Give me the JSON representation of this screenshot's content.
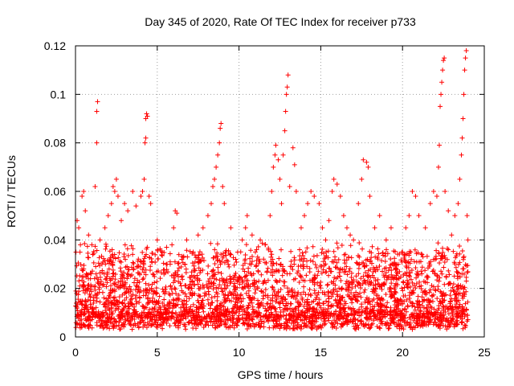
{
  "chart_data": {
    "type": "scatter",
    "title": "Day 345 of 2020, Rate Of TEC Index for receiver p733",
    "xlabel": "GPS time / hours",
    "ylabel": "ROTI / TECUs",
    "xlim": [
      0,
      25
    ],
    "ylim": [
      0,
      0.12
    ],
    "x_ticks": [
      0,
      5,
      10,
      15,
      20,
      25
    ],
    "x_tick_labels": [
      "0",
      "5",
      "10",
      "15",
      "20",
      "25"
    ],
    "y_ticks": [
      0,
      0.02,
      0.04,
      0.06,
      0.08,
      0.1,
      0.12
    ],
    "y_tick_labels": [
      "0",
      "0.02",
      "0.04",
      "0.06",
      "0.08",
      "0.1",
      "0.12"
    ],
    "grid": true,
    "marker": "+",
    "color": "#ff0000",
    "series": [
      {
        "name": "ROTI",
        "points": [
          [
            0.1,
            0.048
          ],
          [
            0.2,
            0.045
          ],
          [
            0.3,
            0.038
          ],
          [
            0.4,
            0.058
          ],
          [
            0.5,
            0.06
          ],
          [
            0.6,
            0.052
          ],
          [
            0.8,
            0.042
          ],
          [
            1.0,
            0.038
          ],
          [
            1.2,
            0.062
          ],
          [
            1.3,
            0.08
          ],
          [
            1.3,
            0.093
          ],
          [
            1.35,
            0.097
          ],
          [
            1.5,
            0.04
          ],
          [
            1.8,
            0.045
          ],
          [
            2.0,
            0.05
          ],
          [
            2.2,
            0.055
          ],
          [
            2.3,
            0.062
          ],
          [
            2.4,
            0.06
          ],
          [
            2.5,
            0.065
          ],
          [
            2.6,
            0.058
          ],
          [
            2.8,
            0.048
          ],
          [
            3.0,
            0.055
          ],
          [
            3.2,
            0.052
          ],
          [
            3.5,
            0.06
          ],
          [
            3.7,
            0.054
          ],
          [
            4.0,
            0.058
          ],
          [
            4.1,
            0.06
          ],
          [
            4.2,
            0.065
          ],
          [
            4.25,
            0.08
          ],
          [
            4.3,
            0.082
          ],
          [
            4.3,
            0.09
          ],
          [
            4.35,
            0.092
          ],
          [
            4.4,
            0.091
          ],
          [
            4.5,
            0.058
          ],
          [
            4.6,
            0.055
          ],
          [
            5.0,
            0.04
          ],
          [
            5.3,
            0.035
          ],
          [
            5.6,
            0.03
          ],
          [
            5.9,
            0.038
          ],
          [
            6.0,
            0.045
          ],
          [
            6.1,
            0.052
          ],
          [
            6.2,
            0.051
          ],
          [
            6.5,
            0.032
          ],
          [
            6.8,
            0.04
          ],
          [
            7.2,
            0.035
          ],
          [
            7.5,
            0.042
          ],
          [
            7.8,
            0.045
          ],
          [
            8.1,
            0.05
          ],
          [
            8.3,
            0.055
          ],
          [
            8.4,
            0.062
          ],
          [
            8.5,
            0.065
          ],
          [
            8.6,
            0.07
          ],
          [
            8.7,
            0.075
          ],
          [
            8.8,
            0.08
          ],
          [
            8.85,
            0.086
          ],
          [
            8.9,
            0.088
          ],
          [
            9.0,
            0.062
          ],
          [
            9.1,
            0.055
          ],
          [
            9.5,
            0.045
          ],
          [
            9.8,
            0.032
          ],
          [
            10.2,
            0.04
          ],
          [
            10.4,
            0.045
          ],
          [
            10.5,
            0.05
          ],
          [
            10.8,
            0.042
          ],
          [
            11.0,
            0.035
          ],
          [
            11.3,
            0.04
          ],
          [
            11.6,
            0.038
          ],
          [
            11.9,
            0.05
          ],
          [
            12.0,
            0.06
          ],
          [
            12.1,
            0.07
          ],
          [
            12.2,
            0.075
          ],
          [
            12.25,
            0.079
          ],
          [
            12.4,
            0.073
          ],
          [
            12.5,
            0.065
          ],
          [
            12.6,
            0.055
          ],
          [
            12.7,
            0.075
          ],
          [
            12.8,
            0.085
          ],
          [
            12.85,
            0.093
          ],
          [
            12.9,
            0.1
          ],
          [
            12.95,
            0.103
          ],
          [
            13.0,
            0.108
          ],
          [
            13.1,
            0.062
          ],
          [
            13.3,
            0.078
          ],
          [
            13.4,
            0.071
          ],
          [
            13.5,
            0.06
          ],
          [
            13.8,
            0.045
          ],
          [
            14.0,
            0.05
          ],
          [
            14.2,
            0.055
          ],
          [
            14.4,
            0.06
          ],
          [
            14.6,
            0.058
          ],
          [
            14.9,
            0.055
          ],
          [
            15.1,
            0.045
          ],
          [
            15.3,
            0.04
          ],
          [
            15.5,
            0.048
          ],
          [
            15.7,
            0.06
          ],
          [
            15.8,
            0.065
          ],
          [
            16.0,
            0.063
          ],
          [
            16.2,
            0.058
          ],
          [
            16.4,
            0.05
          ],
          [
            16.6,
            0.045
          ],
          [
            16.8,
            0.042
          ],
          [
            17.0,
            0.04
          ],
          [
            17.3,
            0.055
          ],
          [
            17.5,
            0.065
          ],
          [
            17.6,
            0.073
          ],
          [
            17.8,
            0.072
          ],
          [
            17.9,
            0.07
          ],
          [
            18.0,
            0.058
          ],
          [
            18.3,
            0.045
          ],
          [
            18.6,
            0.05
          ],
          [
            19.0,
            0.04
          ],
          [
            19.3,
            0.045
          ],
          [
            19.6,
            0.03
          ],
          [
            20.0,
            0.035
          ],
          [
            20.2,
            0.045
          ],
          [
            20.4,
            0.05
          ],
          [
            20.6,
            0.06
          ],
          [
            20.8,
            0.058
          ],
          [
            21.0,
            0.05
          ],
          [
            21.4,
            0.045
          ],
          [
            21.7,
            0.055
          ],
          [
            21.9,
            0.06
          ],
          [
            22.1,
            0.058
          ],
          [
            22.2,
            0.07
          ],
          [
            22.25,
            0.079
          ],
          [
            22.3,
            0.095
          ],
          [
            22.35,
            0.1
          ],
          [
            22.4,
            0.105
          ],
          [
            22.45,
            0.11
          ],
          [
            22.5,
            0.114
          ],
          [
            22.55,
            0.115
          ],
          [
            22.6,
            0.06
          ],
          [
            22.8,
            0.052
          ],
          [
            23.0,
            0.042
          ],
          [
            23.2,
            0.05
          ],
          [
            23.4,
            0.055
          ],
          [
            23.5,
            0.065
          ],
          [
            23.6,
            0.075
          ],
          [
            23.65,
            0.082
          ],
          [
            23.7,
            0.09
          ],
          [
            23.75,
            0.1
          ],
          [
            23.8,
            0.11
          ],
          [
            23.85,
            0.115
          ],
          [
            23.9,
            0.118
          ],
          [
            23.95,
            0.05
          ],
          [
            24.0,
            0.04
          ]
        ]
      }
    ]
  }
}
